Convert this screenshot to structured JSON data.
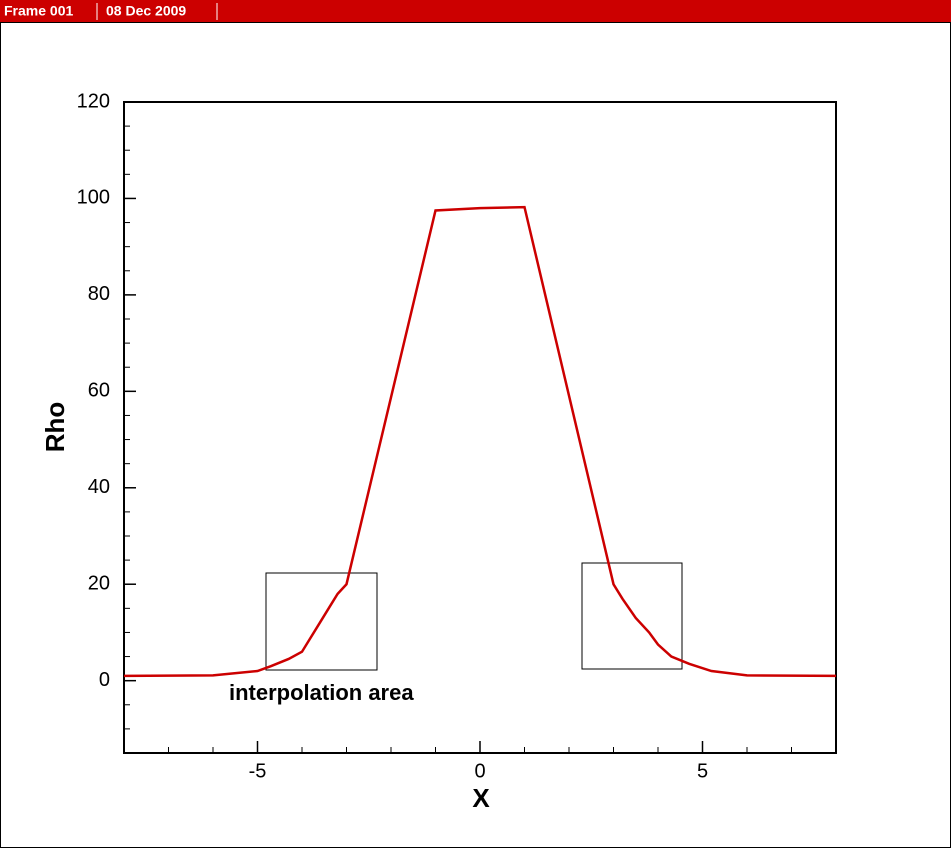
{
  "header": {
    "frame": "Frame 001",
    "date": "08 Dec 2009"
  },
  "chart_data": {
    "type": "line",
    "x_label": "X",
    "y_label": "Rho",
    "annotation": "interpolation area",
    "xlim": [
      -8,
      8
    ],
    "ylim": [
      -15,
      120
    ],
    "xticks": [
      -5,
      0,
      5
    ],
    "yticks": [
      0,
      20,
      40,
      60,
      80,
      100,
      120
    ],
    "series": [
      {
        "color": "#cc0000",
        "x": [
          -8,
          -6,
          -5,
          -4.7,
          -4.3,
          -4.0,
          -3.8,
          -3.6,
          -3.4,
          -3.2,
          -3.0,
          -1.0,
          0,
          1.0,
          3.0,
          3.2,
          3.5,
          3.8,
          4.0,
          4.3,
          4.7,
          5.2,
          6,
          8
        ],
        "values": [
          1,
          1.1,
          2,
          3,
          4.5,
          6,
          9,
          12,
          15,
          18,
          20,
          97.5,
          98,
          98.2,
          20,
          17,
          13,
          10,
          7.5,
          5,
          3.5,
          2,
          1.1,
          1
        ]
      }
    ]
  }
}
